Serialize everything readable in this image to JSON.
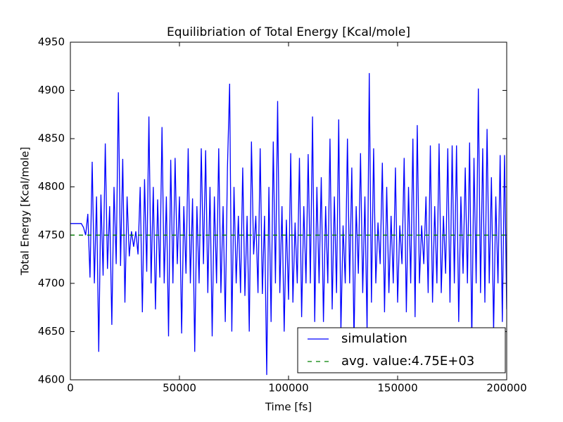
{
  "chart_data": {
    "type": "line",
    "title": "Equilibriation of Total Energy [Kcal/mole]",
    "x_label": "Time [fs]",
    "y_label": "Total Energy [Kcal/mole]",
    "xlim": [
      0,
      200000
    ],
    "xticks": [
      0,
      50000,
      100000,
      150000,
      200000
    ],
    "ylim": [
      4600,
      4950
    ],
    "yticks": [
      4600,
      4650,
      4700,
      4750,
      4800,
      4850,
      4900,
      4950
    ],
    "legend": "lower right",
    "series": [
      {
        "name": "simulation",
        "color": "#0000ff",
        "dash": "solid",
        "x": [
          0,
          1000,
          2000,
          3000,
          4000,
          5000,
          6000,
          7000,
          8000,
          9000,
          10000,
          11000,
          12000,
          13000,
          14000,
          15000,
          16000,
          17000,
          18000,
          19000,
          20000,
          21000,
          22000,
          23000,
          24000,
          25000,
          26000,
          27000,
          28000,
          29000,
          30000,
          31000,
          32000,
          33000,
          34000,
          35000,
          36000,
          37000,
          38000,
          39000,
          40000,
          41000,
          42000,
          43000,
          44000,
          45000,
          46000,
          47000,
          48000,
          49000,
          50000,
          51000,
          52000,
          53000,
          54000,
          55000,
          56000,
          57000,
          58000,
          59000,
          60000,
          61000,
          62000,
          63000,
          64000,
          65000,
          66000,
          67000,
          68000,
          69000,
          70000,
          71000,
          72000,
          73000,
          74000,
          75000,
          76000,
          77000,
          78000,
          79000,
          80000,
          81000,
          82000,
          83000,
          84000,
          85000,
          86000,
          87000,
          88000,
          89000,
          90000,
          91000,
          92000,
          93000,
          94000,
          95000,
          96000,
          97000,
          98000,
          99000,
          100000,
          101000,
          102000,
          103000,
          104000,
          105000,
          106000,
          107000,
          108000,
          109000,
          110000,
          111000,
          112000,
          113000,
          114000,
          115000,
          116000,
          117000,
          118000,
          119000,
          120000,
          121000,
          122000,
          123000,
          124000,
          125000,
          126000,
          127000,
          128000,
          129000,
          130000,
          131000,
          132000,
          133000,
          134000,
          135000,
          136000,
          137000,
          138000,
          139000,
          140000,
          141000,
          142000,
          143000,
          144000,
          145000,
          146000,
          147000,
          148000,
          149000,
          150000,
          151000,
          152000,
          153000,
          154000,
          155000,
          156000,
          157000,
          158000,
          159000,
          160000,
          161000,
          162000,
          163000,
          164000,
          165000,
          166000,
          167000,
          168000,
          169000,
          170000,
          171000,
          172000,
          173000,
          174000,
          175000,
          176000,
          177000,
          178000,
          179000,
          180000,
          181000,
          182000,
          183000,
          184000,
          185000,
          186000,
          187000,
          188000,
          189000,
          190000,
          191000,
          192000,
          193000,
          194000,
          195000,
          196000,
          197000,
          198000,
          199000,
          200000
        ],
        "values": [
          4762,
          4762,
          4762,
          4762,
          4762,
          4762,
          4758,
          4750,
          4772,
          4706,
          4826,
          4700,
          4790,
          4629,
          4792,
          4708,
          4845,
          4715,
          4780,
          4657,
          4800,
          4720,
          4898,
          4718,
          4829,
          4680,
          4790,
          4728,
          4754,
          4738,
          4754,
          4730,
          4800,
          4670,
          4808,
          4712,
          4873,
          4700,
          4800,
          4673,
          4787,
          4706,
          4862,
          4700,
          4790,
          4645,
          4828,
          4700,
          4830,
          4720,
          4790,
          4648,
          4780,
          4710,
          4840,
          4700,
          4788,
          4629,
          4780,
          4700,
          4840,
          4720,
          4838,
          4690,
          4800,
          4645,
          4790,
          4700,
          4840,
          4690,
          4780,
          4660,
          4820,
          4907,
          4650,
          4800,
          4700,
          4770,
          4690,
          4820,
          4687,
          4770,
          4650,
          4847,
          4730,
          4770,
          4690,
          4840,
          4689,
          4770,
          4605,
          4800,
          4660,
          4847,
          4700,
          4889,
          4690,
          4780,
          4650,
          4766,
          4683,
          4835,
          4680,
          4763,
          4700,
          4830,
          4665,
          4780,
          4700,
          4834,
          4700,
          4873,
          4660,
          4800,
          4700,
          4810,
          4660,
          4780,
          4700,
          4850,
          4673,
          4790,
          4690,
          4870,
          4650,
          4760,
          4700,
          4850,
          4700,
          4820,
          4640,
          4780,
          4710,
          4835,
          4690,
          4790,
          4650,
          4918,
          4680,
          4840,
          4700,
          4763,
          4720,
          4825,
          4670,
          4800,
          4690,
          4770,
          4700,
          4820,
          4680,
          4760,
          4720,
          4830,
          4670,
          4800,
          4700,
          4850,
          4665,
          4864,
          4700,
          4760,
          4720,
          4790,
          4690,
          4843,
          4680,
          4780,
          4700,
          4845,
          4690,
          4770,
          4710,
          4840,
          4680,
          4843,
          4700,
          4843,
          4660,
          4790,
          4710,
          4820,
          4700,
          4846,
          4640,
          4830,
          4700,
          4902,
          4690,
          4840,
          4680,
          4860,
          4700,
          4810,
          4650,
          4790,
          4700,
          4833,
          4660,
          4833,
          4673
        ]
      },
      {
        "name": "avg. value:4.75E+03",
        "color": "#008000",
        "dash": "dashed",
        "x": [
          0,
          200000
        ],
        "values": [
          4750,
          4750
        ]
      }
    ]
  }
}
